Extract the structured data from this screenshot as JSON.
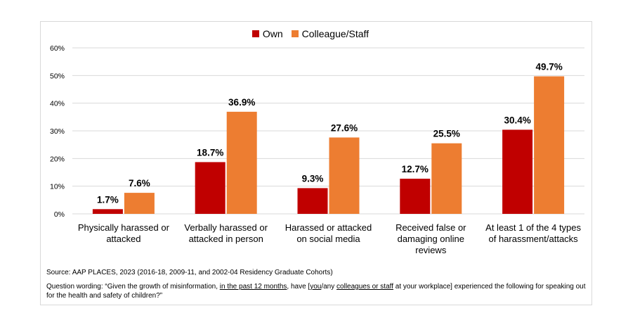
{
  "chart_data": {
    "type": "bar",
    "categories": [
      "Physically harassed or attacked",
      "Verbally harassed or attacked in person",
      "Harassed or attacked on social media",
      "Received false or damaging online reviews",
      "At least 1 of the 4 types of harassment/attacks"
    ],
    "series": [
      {
        "name": "Own",
        "color": "#c00000",
        "values": [
          1.7,
          18.7,
          9.3,
          12.7,
          30.4
        ],
        "labels": [
          "1.7%",
          "18.7%",
          "9.3%",
          "12.7%",
          "30.4%"
        ]
      },
      {
        "name": "Colleague/Staff",
        "color": "#ed7d31",
        "values": [
          7.6,
          36.9,
          27.6,
          25.5,
          49.7
        ],
        "labels": [
          "7.6%",
          "36.9%",
          "27.6%",
          "25.5%",
          "49.7%"
        ]
      }
    ],
    "ylim": [
      0,
      60
    ],
    "yticks": [
      0,
      10,
      20,
      30,
      40,
      50,
      60
    ],
    "ytick_labels": [
      "0%",
      "10%",
      "20%",
      "30%",
      "40%",
      "50%",
      "60%"
    ],
    "grid": true,
    "legend_position": "top-center"
  },
  "category_lines": [
    [
      "Physically harassed or",
      "attacked"
    ],
    [
      "Verbally harassed or",
      "attacked in person"
    ],
    [
      "Harassed or attacked",
      "on social media"
    ],
    [
      "Received false or",
      "damaging online",
      "reviews"
    ],
    [
      "At least 1 of the 4 types",
      "of harassment/attacks"
    ]
  ],
  "source": "Source: AAP PLACES, 2023 (2016-18, 2009-11, and 2002-04 Residency Graduate Cohorts)",
  "question": {
    "p1": "Question wording: “Given the growth of misinformation, ",
    "u1": "in the past 12 months",
    "p2": ", have [",
    "u2": "you",
    "p3": "/any ",
    "u3": "colleagues or staff",
    "p4": " at your workplace] experienced the following for speaking out for the health and safety of children?”"
  }
}
